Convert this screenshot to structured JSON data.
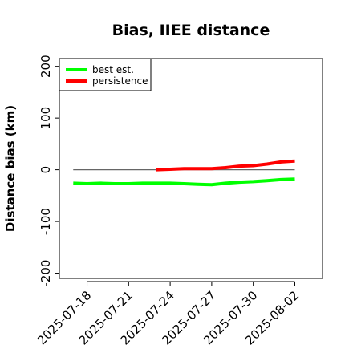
{
  "chart_data": {
    "type": "line",
    "title": "Bias, IIEE distance",
    "xlabel": "",
    "ylabel": "Distance bias (km)",
    "xlim": [
      "2025-07-16",
      "2025-08-04"
    ],
    "ylim": [
      -210,
      215
    ],
    "yticks": [
      -200,
      -100,
      0,
      100,
      200
    ],
    "xticks": [
      "2025-07-18",
      "2025-07-21",
      "2025-07-24",
      "2025-07-27",
      "2025-07-30",
      "2025-08-02"
    ],
    "grid": false,
    "legend_position": "top-left",
    "reference_line": {
      "y": 0,
      "from": "2025-07-17",
      "to": "2025-08-02",
      "color": "#666666"
    },
    "series": [
      {
        "name": "best est.",
        "color": "#00ff00",
        "x": [
          "2025-07-17",
          "2025-07-18",
          "2025-07-19",
          "2025-07-20",
          "2025-07-21",
          "2025-07-22",
          "2025-07-23",
          "2025-07-24",
          "2025-07-25",
          "2025-07-26",
          "2025-07-27",
          "2025-07-28",
          "2025-07-29",
          "2025-07-30",
          "2025-07-31",
          "2025-08-01",
          "2025-08-02"
        ],
        "values": [
          -26,
          -27,
          -26,
          -27,
          -27,
          -26,
          -26,
          -26,
          -27,
          -28,
          -29,
          -26,
          -24,
          -23,
          -21,
          -19,
          -18
        ]
      },
      {
        "name": "persistence",
        "color": "#ff0000",
        "x": [
          "2025-07-23",
          "2025-07-24",
          "2025-07-25",
          "2025-07-26",
          "2025-07-27",
          "2025-07-28",
          "2025-07-29",
          "2025-07-30",
          "2025-07-31",
          "2025-08-01",
          "2025-08-02"
        ],
        "values": [
          0,
          1,
          2,
          2,
          2,
          4,
          7,
          8,
          11,
          15,
          17
        ]
      }
    ]
  }
}
